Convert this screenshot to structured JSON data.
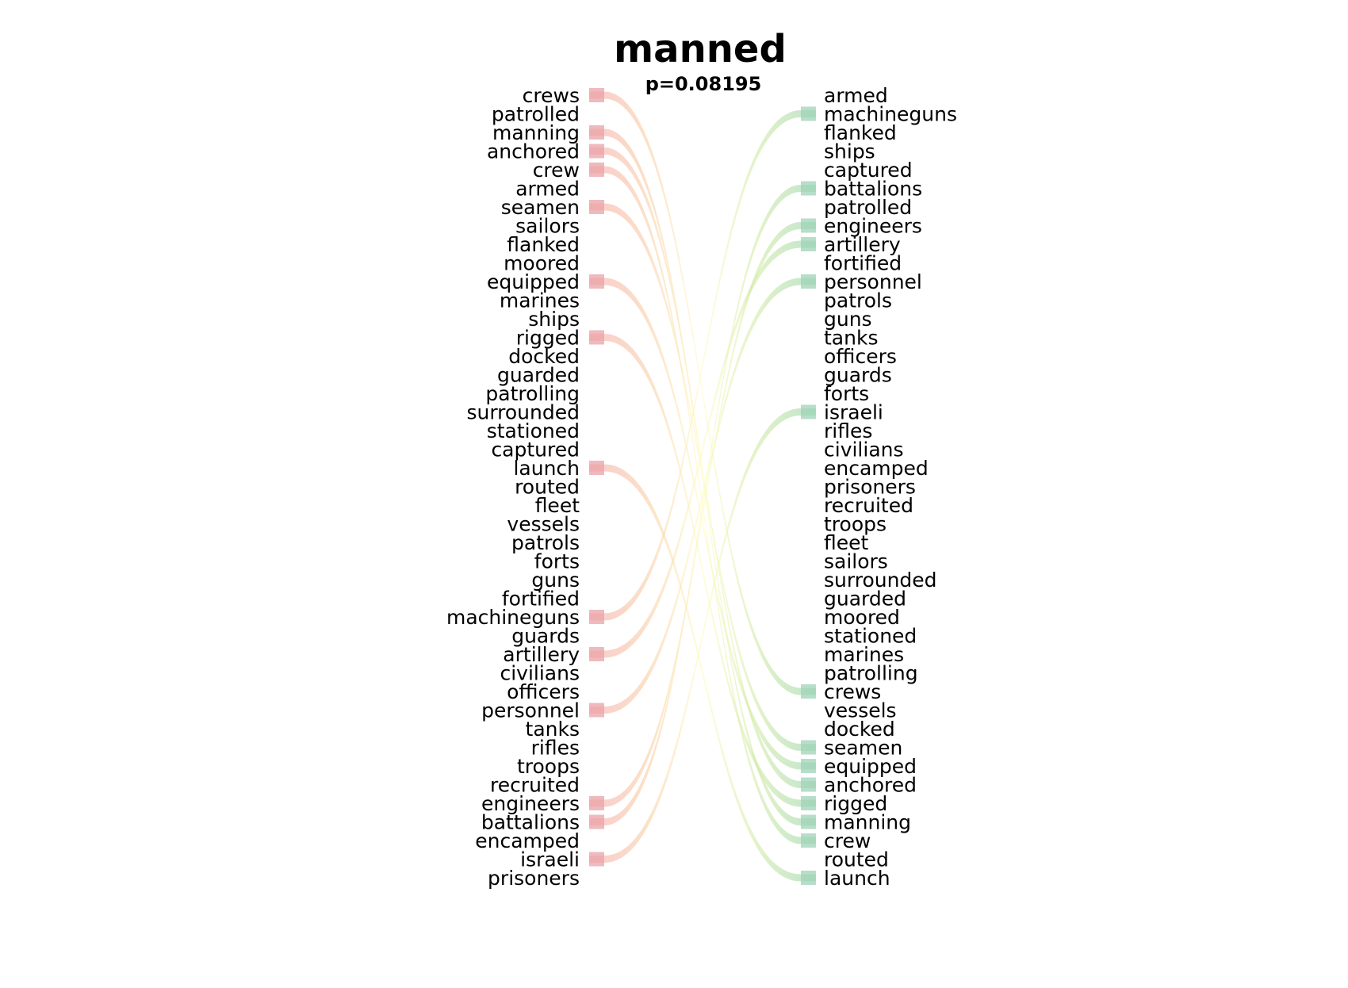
{
  "chart_data": {
    "type": "slope",
    "title": "manned",
    "subtitle": "p=0.08195",
    "left_words": [
      "crews",
      "patrolled",
      "manning",
      "anchored",
      "crew",
      "armed",
      "seamen",
      "sailors",
      "flanked",
      "moored",
      "equipped",
      "marines",
      "ships",
      "rigged",
      "docked",
      "guarded",
      "patrolling",
      "surrounded",
      "stationed",
      "captured",
      "launch",
      "routed",
      "fleet",
      "vessels",
      "patrols",
      "forts",
      "guns",
      "fortified",
      "machineguns",
      "guards",
      "artillery",
      "civilians",
      "officers",
      "personnel",
      "tanks",
      "rifles",
      "troops",
      "recruited",
      "engineers",
      "battalions",
      "encamped",
      "israeli",
      "prisoners"
    ],
    "right_words": [
      "armed",
      "machineguns",
      "flanked",
      "ships",
      "captured",
      "battalions",
      "patrolled",
      "engineers",
      "artillery",
      "fortified",
      "personnel",
      "patrols",
      "guns",
      "tanks",
      "officers",
      "guards",
      "forts",
      "israeli",
      "rifles",
      "civilians",
      "encamped",
      "prisoners",
      "recruited",
      "troops",
      "fleet",
      "sailors",
      "surrounded",
      "guarded",
      "moored",
      "stationed",
      "marines",
      "patrolling",
      "crews",
      "vessels",
      "docked",
      "seamen",
      "equipped",
      "anchored",
      "rigged",
      "manning",
      "crew",
      "routed",
      "launch"
    ],
    "links": [
      "crews",
      "manning",
      "anchored",
      "crew",
      "seamen",
      "equipped",
      "rigged",
      "launch",
      "machineguns",
      "artillery",
      "personnel",
      "engineers",
      "battalions",
      "israeli"
    ],
    "colors": {
      "left_marker": "#e9a3a7",
      "right_marker": "#9fd3b7",
      "gradient_stops": [
        "#f4a0a2",
        "#f8c79a",
        "#fffbc0",
        "#c9e79a",
        "#8ccfa3"
      ]
    }
  }
}
